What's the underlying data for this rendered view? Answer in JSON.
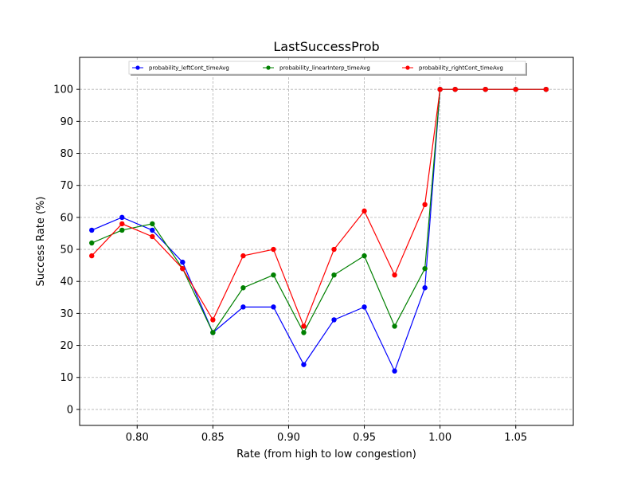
{
  "chart_data": {
    "type": "line",
    "title": "LastSuccessProb",
    "xlabel": "Rate (from high to low congestion)",
    "ylabel": "Success Rate (%)",
    "xlim": [
      0.762,
      1.088
    ],
    "ylim": [
      -5,
      110
    ],
    "x_ticks": [
      0.8,
      0.85,
      0.9,
      0.95,
      1.0,
      1.05
    ],
    "x_tick_labels": [
      "0.80",
      "0.85",
      "0.90",
      "0.95",
      "1.00",
      "1.05"
    ],
    "y_ticks": [
      0,
      10,
      20,
      30,
      40,
      50,
      60,
      70,
      80,
      90,
      100
    ],
    "y_tick_labels": [
      "0",
      "10",
      "20",
      "30",
      "40",
      "50",
      "60",
      "70",
      "80",
      "90",
      "100"
    ],
    "grid": true,
    "legend_position": "top-center",
    "x": [
      0.77,
      0.79,
      0.81,
      0.83,
      0.85,
      0.87,
      0.89,
      0.91,
      0.93,
      0.95,
      0.97,
      0.99,
      1.0,
      1.01,
      1.03,
      1.05,
      1.07
    ],
    "series": [
      {
        "name": "probability_leftCont_timeAvg",
        "color": "#0000ff",
        "values": [
          56,
          60,
          56,
          46,
          24,
          32,
          32,
          14,
          28,
          32,
          12,
          38,
          100,
          100,
          100,
          100,
          100
        ]
      },
      {
        "name": "probability_linearInterp_timeAvg",
        "color": "#008000",
        "values": [
          52,
          56,
          58,
          44,
          24,
          38,
          42,
          24,
          42,
          48,
          26,
          44,
          100,
          100,
          100,
          100,
          100
        ]
      },
      {
        "name": "probability_rightCont_timeAvg",
        "color": "#ff0000",
        "values": [
          48,
          58,
          54,
          44,
          28,
          48,
          50,
          26,
          50,
          62,
          42,
          64,
          100,
          100,
          100,
          100,
          100
        ]
      }
    ]
  }
}
